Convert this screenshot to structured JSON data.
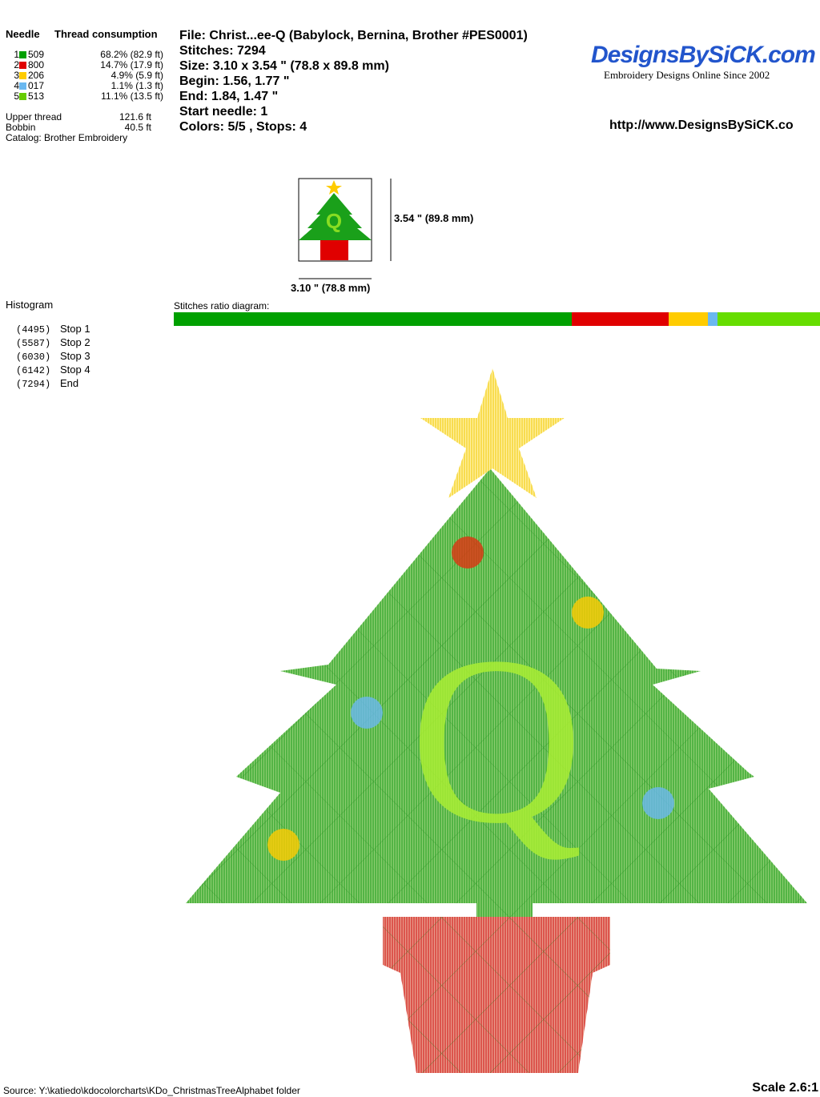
{
  "needle_table": {
    "col_needle": "Needle",
    "col_thread": "Thread consumption",
    "rows": [
      {
        "n": "1",
        "code": "509",
        "color": "#00a000",
        "usage": "68.2% (82.9 ft)"
      },
      {
        "n": "2",
        "code": "800",
        "color": "#e00000",
        "usage": "14.7% (17.9 ft)"
      },
      {
        "n": "3",
        "code": "206",
        "color": "#ffcc00",
        "usage": "4.9% (5.9 ft)"
      },
      {
        "n": "4",
        "code": "017",
        "color": "#6ab8f0",
        "usage": "1.1% (1.3 ft)"
      },
      {
        "n": "5",
        "code": "513",
        "color": "#66cc00",
        "usage": "11.1% (13.5 ft)"
      }
    ],
    "upper_label": "Upper thread",
    "upper_value": "121.6 ft",
    "bobbin_label": "Bobbin",
    "bobbin_value": "40.5 ft",
    "catalog": "Catalog: Brother Embroidery"
  },
  "info": {
    "file": "File: Christ...ee-Q  (Babylock, Bernina, Brother #PES0001)",
    "stitches": "Stitches: 7294",
    "size": "Size: 3.10 x 3.54 \" (78.8 x 89.8 mm)",
    "begin": "Begin: 1.56, 1.77 \"",
    "end": "End: 1.84, 1.47 \"",
    "start_needle": "Start needle: 1",
    "colors": "Colors: 5/5 , Stops: 4"
  },
  "logo": {
    "name": "DesignsBySiCK.com",
    "tagline": "Embroidery Designs Online Since 2002",
    "url": "http://www.DesignsBySiCK.co"
  },
  "thumb": {
    "height_label": "3.54 \" (89.8 mm)",
    "width_label": "3.10 \" (78.8 mm)"
  },
  "histogram": {
    "title": "Histogram",
    "items": [
      {
        "count": "(4495)",
        "label": "Stop 1"
      },
      {
        "count": "(5587)",
        "label": "Stop 2"
      },
      {
        "count": "(6030)",
        "label": "Stop 3"
      },
      {
        "count": "(6142)",
        "label": "Stop 4"
      },
      {
        "count": "(7294)",
        "label": "End"
      }
    ]
  },
  "ratio": {
    "title": "Stitches ratio diagram:",
    "segments": [
      {
        "color": "#00a000",
        "pct": 61.6
      },
      {
        "color": "#e00000",
        "pct": 15.0
      },
      {
        "color": "#ffcc00",
        "pct": 6.1
      },
      {
        "color": "#6ab8f0",
        "pct": 1.5
      },
      {
        "color": "#66dd00",
        "pct": 15.8
      }
    ]
  },
  "footer": {
    "source": "Source: Y:\\katiedo\\kdocolorcharts\\KDo_ChristmasTreeAlphabet folder",
    "scale": "Scale 2.6:1"
  }
}
